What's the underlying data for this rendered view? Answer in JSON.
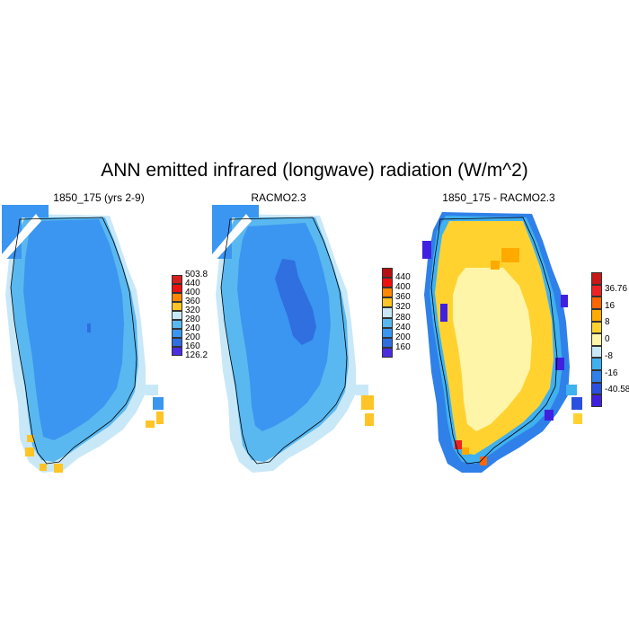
{
  "title": "ANN emitted infrared (longwave) radiation (W/m^2)",
  "panels": [
    {
      "title": "1850_175 (yrs 2-9)",
      "colorbar": {
        "labels": [
          "503.8",
          "440",
          "400",
          "360",
          "320",
          "280",
          "240",
          "200",
          "160",
          "126.2"
        ],
        "colors": [
          "#d62020",
          "#ee1111",
          "#ff8800",
          "#ffc425",
          "#c8e8f8",
          "#5ab8f0",
          "#3a96f0",
          "#2f6fe0",
          "#4a2ee0"
        ]
      }
    },
    {
      "title": "RACMO2.3",
      "colorbar": {
        "labels": [
          "440",
          "400",
          "360",
          "320",
          "280",
          "240",
          "200",
          "160"
        ],
        "colors": [
          "#b81010",
          "#ee1111",
          "#ff8800",
          "#ffc425",
          "#c8e8f8",
          "#5ab8f0",
          "#3a96f0",
          "#2f6fe0",
          "#4a2ee0"
        ]
      }
    },
    {
      "title": "1850_175 - RACMO2.3",
      "colorbar": {
        "labels": [
          "36.76",
          "16",
          "8",
          "0",
          "-8",
          "-16",
          "-40.58"
        ],
        "colors": [
          "#c81818",
          "#ee2222",
          "#ff6600",
          "#ffaa00",
          "#ffd230",
          "#fff5a8",
          "#c8e8f8",
          "#3fb0f0",
          "#2f80e8",
          "#2a50e0",
          "#4020e0"
        ]
      }
    }
  ],
  "legend_colors": {
    "fill_a": "#3a96f0",
    "fill_b": "#5ab8f0",
    "fill_c": "#c8e8f8",
    "warm": "#ffc425",
    "interior_low": "#2f6fe0",
    "diff_core": "#fff5a8",
    "diff_mid": "#ffd230",
    "diff_hi": "#ffaa00",
    "diff_blue": "#2f80e8",
    "diff_violet": "#4020e0",
    "diff_red": "#ee2222"
  }
}
